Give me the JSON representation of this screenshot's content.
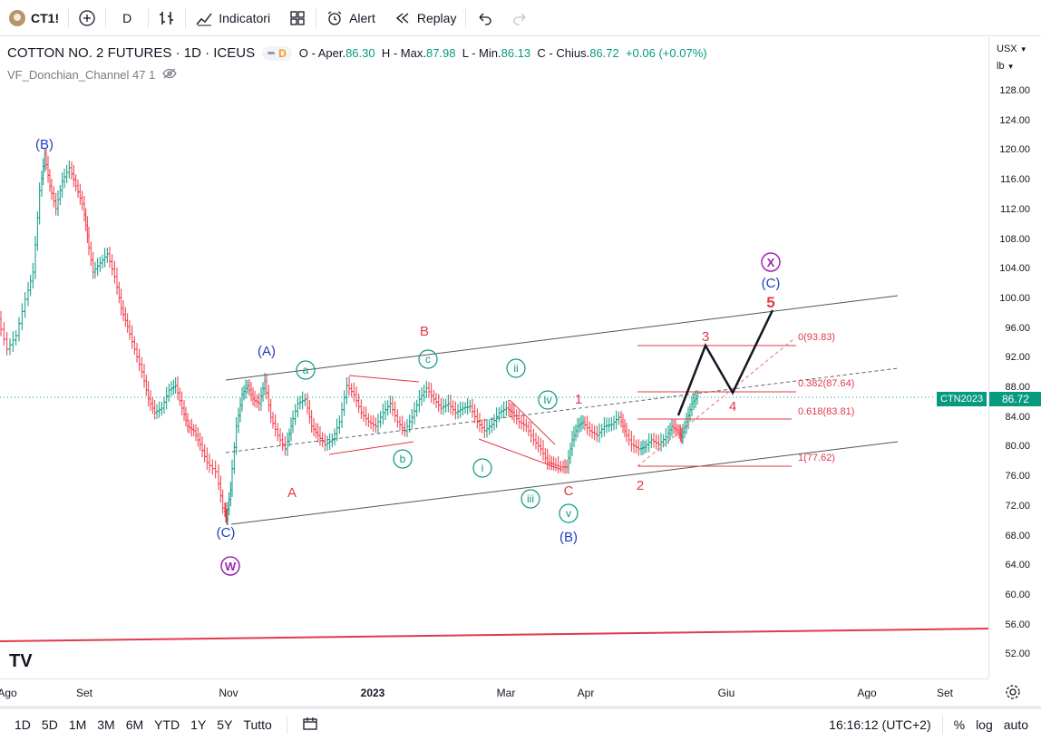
{
  "toolbar": {
    "symbol": "CT1!",
    "interval": "D",
    "indicators_label": "Indicatori",
    "alert_label": "Alert",
    "replay_label": "Replay"
  },
  "legend": {
    "title": "COTTON NO. 2 FUTURES · 1D · ICEUS",
    "badge": "D",
    "open_label": "O - Aper.",
    "open": "86.30",
    "high_label": "H - Max.",
    "high": "87.98",
    "low_label": "L - Min.",
    "low": "86.13",
    "close_label": "C - Chius.",
    "close": "86.72",
    "change": "+0.06 (+0.07%)",
    "indicator": "VF_Donchian_Channel 47 1"
  },
  "price_axis": {
    "currency": "USX",
    "unit": "lb",
    "ticks": [
      "128.00",
      "124.00",
      "120.00",
      "116.00",
      "112.00",
      "108.00",
      "104.00",
      "100.00",
      "96.00",
      "92.00",
      "88.00",
      "84.00",
      "80.00",
      "76.00",
      "72.00",
      "68.00",
      "64.00",
      "60.00",
      "56.00",
      "52.00"
    ],
    "last_price": "86.72",
    "last_symbol": "CTN2023"
  },
  "time_axis": {
    "labels": [
      "Ago",
      "Set",
      "Nov",
      "2023",
      "Mar",
      "Apr",
      "Giu",
      "Ago",
      "Set"
    ]
  },
  "annotations": {
    "B_upper": "(B)",
    "A_upper": "(A)",
    "C_lower": "(C)",
    "W": "W",
    "A_red": "A",
    "B_red": "B",
    "C_red": "C",
    "a": "a",
    "b": "b",
    "c": "c",
    "i": "i",
    "ii": "ii",
    "iii": "iii",
    "iv": "iv",
    "v": "v",
    "B_mid": "(B)",
    "one": "1",
    "two": "2",
    "three": "3",
    "four": "4",
    "five": "5",
    "C_target": "(C)",
    "X": "X",
    "fib0": "0(93.83)",
    "fib382": "0.382(87.64)",
    "fib618": "0.618(83.81)",
    "fib1": "1(77.62)"
  },
  "bottom_bar": {
    "ranges": [
      "1D",
      "5D",
      "1M",
      "3M",
      "6M",
      "YTD",
      "1Y",
      "5Y",
      "Tutto"
    ],
    "clock": "16:16:12 (UTC+2)",
    "percent": "%",
    "log": "log",
    "auto": "auto"
  },
  "colors": {
    "up": "#089981",
    "down": "#f23645",
    "blue": "#1e3fbf",
    "teal": "#089981",
    "red": "#e03a4a",
    "purple": "#9c27b0"
  }
}
